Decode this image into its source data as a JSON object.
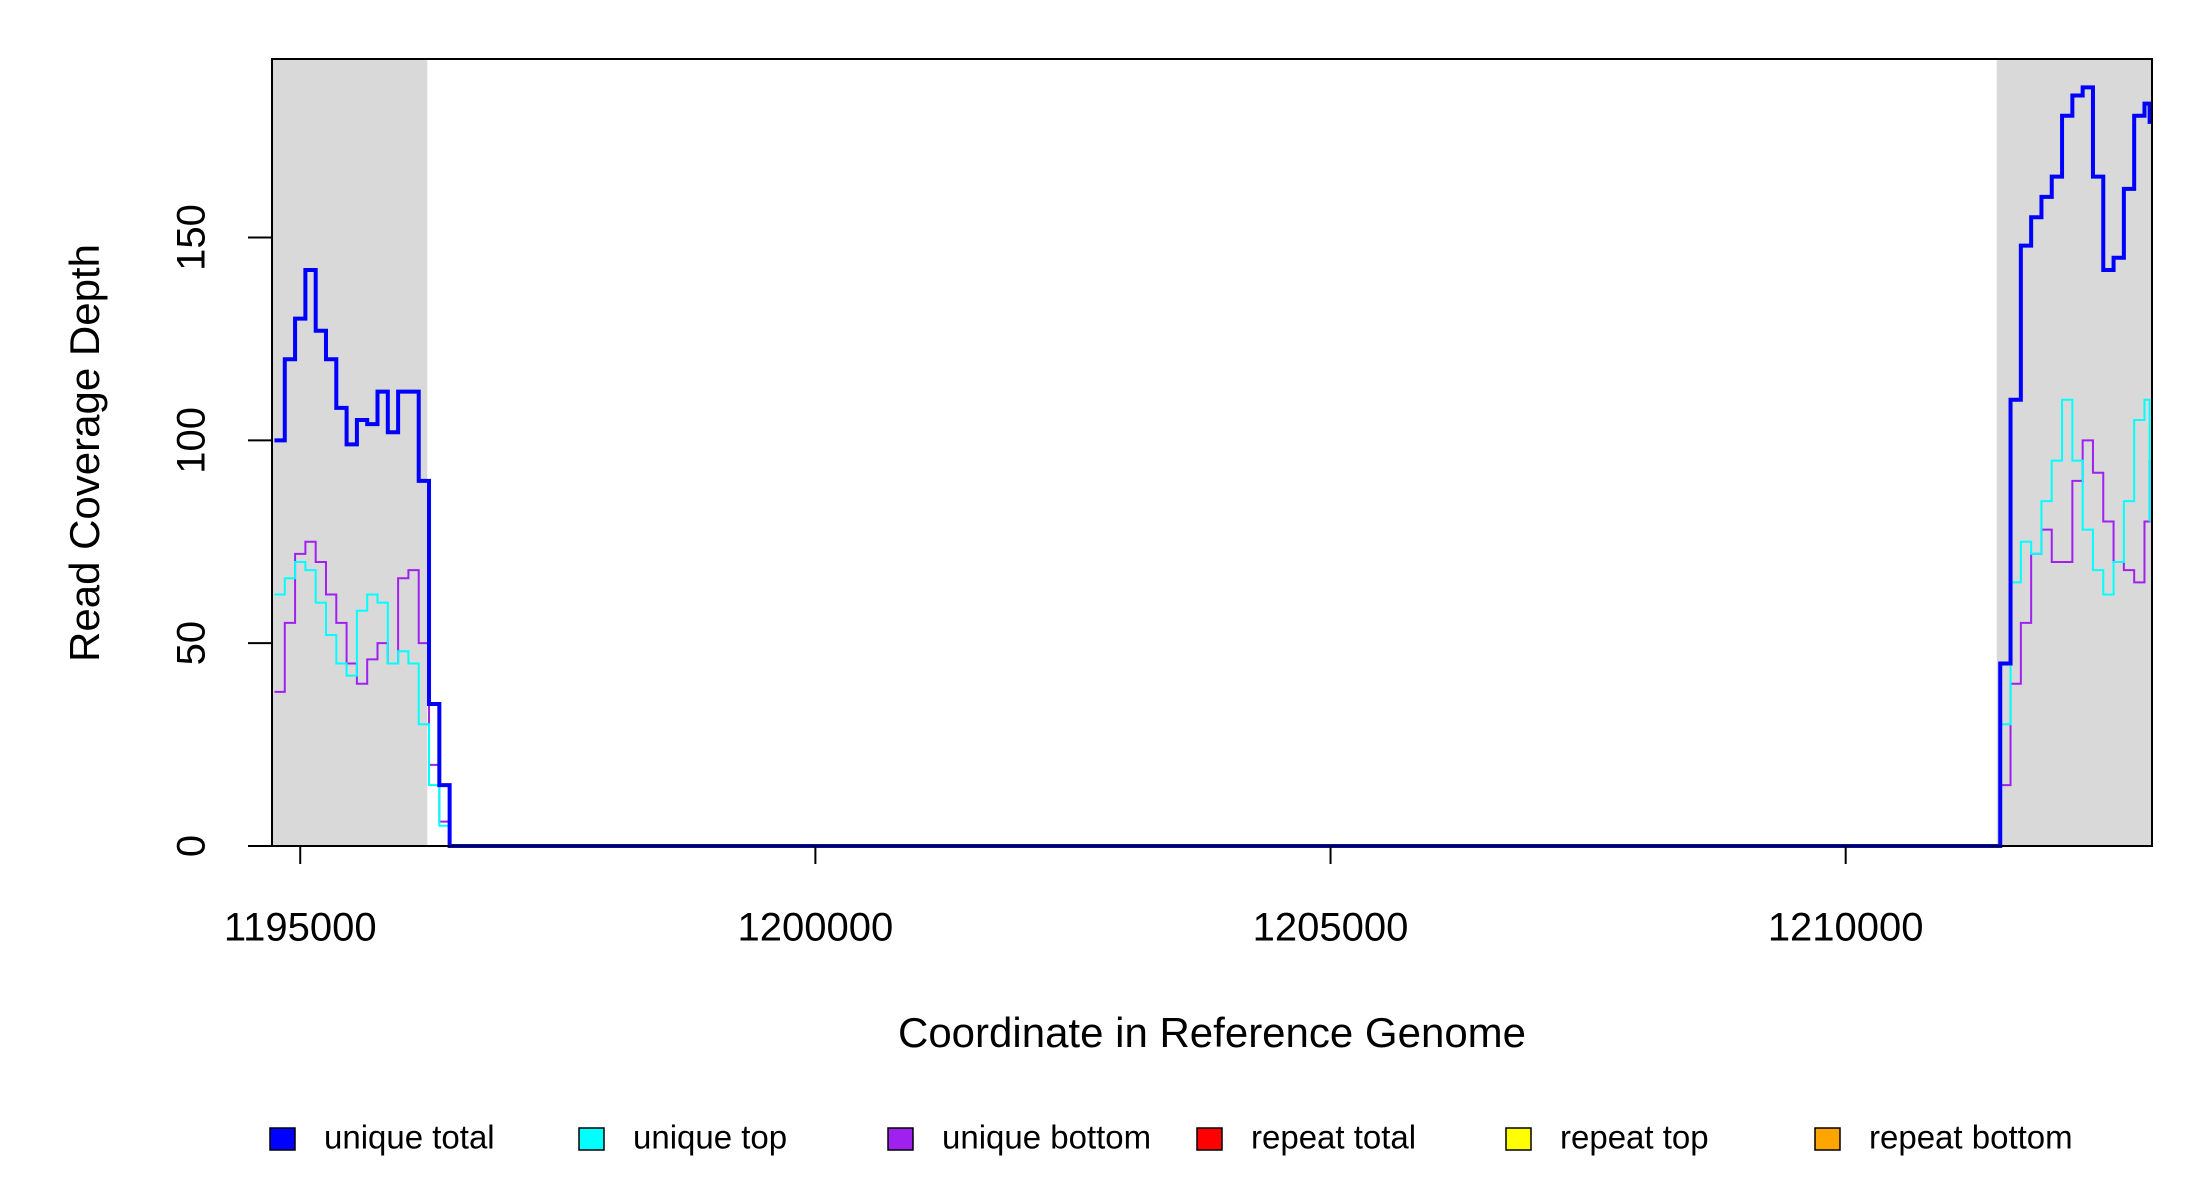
{
  "chart_data": {
    "type": "step",
    "x_label": "Coordinate in Reference Genome",
    "y_label": "Read Coverage Depth",
    "xlim": [
      1194726,
      1212973
    ],
    "ylim": [
      0,
      194
    ],
    "xticks": [
      1195000,
      1200000,
      1205000,
      1210000
    ],
    "yticks": [
      0,
      50,
      100,
      150
    ],
    "highlight_regions": [
      [
        1194726,
        1196233
      ],
      [
        1211466,
        1212973
      ]
    ],
    "highlight_color": "#d9d9d9",
    "legend": "bottom",
    "x": [
      1194750,
      1194850,
      1194950,
      1195050,
      1195150,
      1195250,
      1195350,
      1195450,
      1195550,
      1195650,
      1195750,
      1195850,
      1195950,
      1196050,
      1196150,
      1196250,
      1196350,
      1196450,
      1211400,
      1211500,
      1211600,
      1211700,
      1211800,
      1211900,
      1212000,
      1212100,
      1212200,
      1212300,
      1212400,
      1212500,
      1212600,
      1212700,
      1212800,
      1212900,
      1212950
    ],
    "series": [
      {
        "name": "unique total",
        "color": "#0000ff",
        "width": 4,
        "values": [
          100,
          120,
          130,
          142,
          127,
          120,
          108,
          99,
          105,
          104,
          112,
          102,
          112,
          112,
          90,
          35,
          15,
          0,
          0,
          45,
          110,
          148,
          155,
          160,
          165,
          180,
          185,
          187,
          165,
          142,
          145,
          162,
          180,
          183,
          178
        ]
      },
      {
        "name": "unique top",
        "color": "#00ffff",
        "width": 2,
        "values": [
          62,
          66,
          70,
          68,
          60,
          52,
          45,
          42,
          58,
          62,
          60,
          45,
          48,
          45,
          30,
          15,
          5,
          0,
          0,
          30,
          65,
          75,
          72,
          85,
          95,
          110,
          95,
          78,
          68,
          62,
          70,
          85,
          105,
          110,
          80
        ]
      },
      {
        "name": "unique bottom",
        "color": "#a020f0",
        "width": 2,
        "values": [
          38,
          55,
          72,
          75,
          70,
          62,
          55,
          45,
          40,
          46,
          50,
          45,
          66,
          68,
          50,
          20,
          6,
          0,
          0,
          15,
          40,
          55,
          72,
          78,
          70,
          70,
          90,
          100,
          92,
          80,
          70,
          68,
          65,
          80,
          95
        ]
      },
      {
        "name": "repeat total",
        "color": "#ff0000",
        "width": 2,
        "values": [
          0,
          0,
          0,
          0,
          0,
          0,
          0,
          0,
          0,
          0,
          0,
          0,
          0,
          0,
          0,
          0,
          0,
          0,
          0,
          0,
          0,
          0,
          0,
          0,
          0,
          0,
          0,
          0,
          0,
          0,
          0,
          0,
          0,
          0,
          0
        ]
      },
      {
        "name": "repeat top",
        "color": "#ffff00",
        "width": 2,
        "values": [
          0,
          0,
          0,
          0,
          0,
          0,
          0,
          0,
          0,
          0,
          0,
          0,
          0,
          0,
          0,
          0,
          0,
          0,
          0,
          0,
          0,
          0,
          0,
          0,
          0,
          0,
          0,
          0,
          0,
          0,
          0,
          0,
          0,
          0,
          0
        ]
      },
      {
        "name": "repeat bottom",
        "color": "#ffa500",
        "width": 2,
        "values": [
          0,
          0,
          0,
          0,
          0,
          0,
          0,
          0,
          0,
          0,
          0,
          0,
          0,
          0,
          0,
          0,
          0,
          0,
          0,
          0,
          0,
          0,
          0,
          0,
          0,
          0,
          0,
          0,
          0,
          0,
          0,
          0,
          0,
          0,
          0
        ]
      }
    ]
  }
}
